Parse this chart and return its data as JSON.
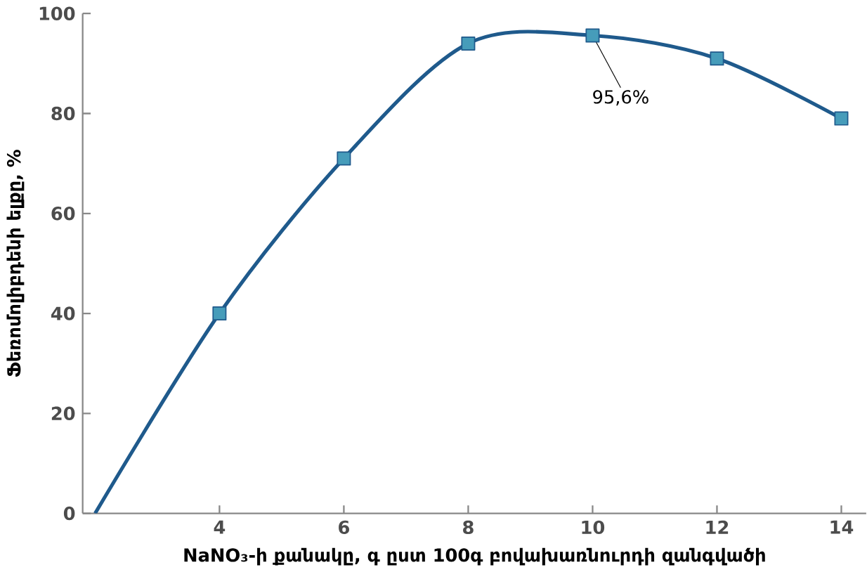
{
  "chart_data": {
    "type": "line",
    "xlabel": "NaNO₃-ի քանակը, գ ըստ 100գ բովախառնուրդի զանգվածի",
    "ylabel": "Ֆեռոմոլիբդենի ելքը, %",
    "x": [
      2,
      4,
      6,
      8,
      10,
      12,
      14
    ],
    "series": [
      {
        "color": "#1f5a8c",
        "values": [
          0,
          40,
          71,
          94,
          95.6,
          91,
          79
        ]
      }
    ],
    "xlim": [
      1.8,
      14.4
    ],
    "xticks": [
      4,
      6,
      8,
      10,
      12,
      14
    ],
    "ylim": [
      0,
      100
    ],
    "yticks": [
      0,
      20,
      40,
      60,
      80,
      100
    ],
    "marker": "square",
    "annotations": [
      {
        "text": "95,6%",
        "x": 10,
        "y": 95.6
      }
    ]
  }
}
